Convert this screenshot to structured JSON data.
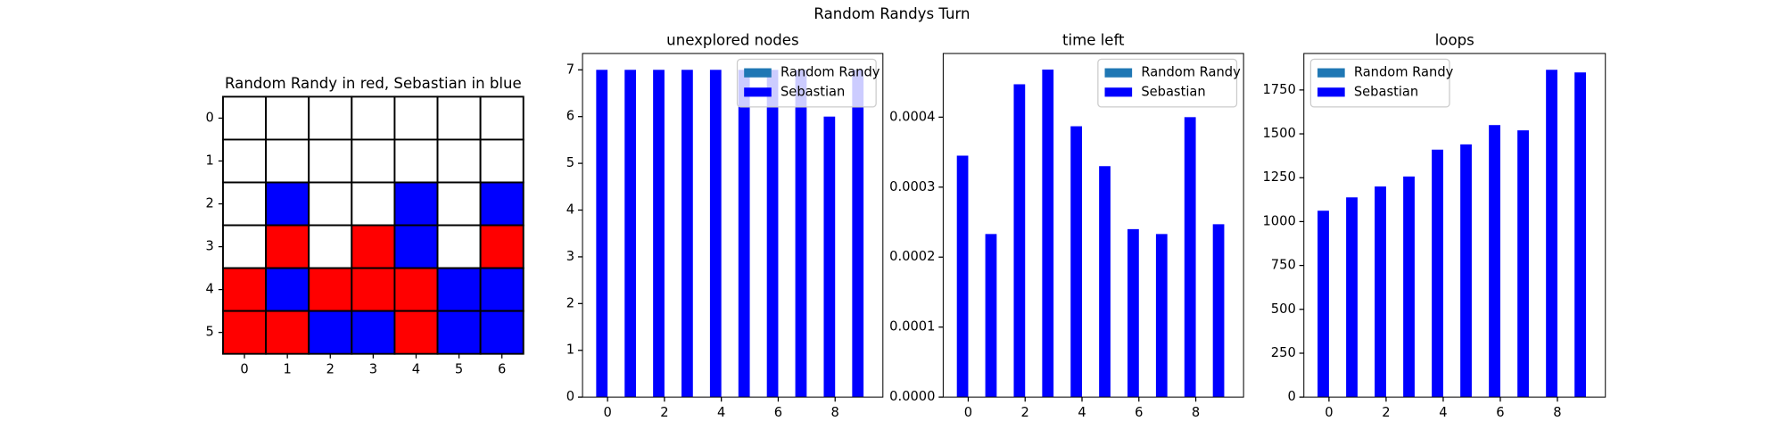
{
  "title": "Random Randys Turn",
  "chart_data": [
    {
      "type": "grid",
      "title": "Random Randy in red, Sebastian in blue",
      "colors": [
        "#ffffff",
        "#ff0000",
        "#0000ff"
      ],
      "values": [
        [
          0,
          0,
          0,
          0,
          0,
          0,
          0
        ],
        [
          0,
          0,
          0,
          0,
          0,
          0,
          0
        ],
        [
          0,
          2,
          0,
          0,
          2,
          0,
          2
        ],
        [
          0,
          1,
          0,
          1,
          2,
          0,
          1
        ],
        [
          1,
          2,
          1,
          1,
          1,
          2,
          2
        ],
        [
          1,
          1,
          2,
          2,
          1,
          2,
          2
        ]
      ],
      "xticks": [
        0,
        1,
        2,
        3,
        4,
        5,
        6
      ],
      "yticks": [
        0,
        1,
        2,
        3,
        4,
        5
      ]
    },
    {
      "type": "bar",
      "title": "unexplored nodes",
      "x": [
        0,
        1,
        2,
        3,
        4,
        5,
        6,
        7,
        8,
        9
      ],
      "series": [
        {
          "name": "Random Randy",
          "color": "#1f77b4",
          "values": [
            0,
            0,
            0,
            0,
            0,
            0,
            0,
            0,
            0,
            0
          ]
        },
        {
          "name": "Sebastian",
          "color": "#0000ff",
          "values": [
            7,
            7,
            7,
            7,
            7,
            7,
            7,
            7,
            6,
            7
          ]
        }
      ],
      "xlim": [
        -0.88,
        9.68
      ],
      "xticks": [
        0,
        2,
        4,
        6,
        8
      ],
      "ylim": [
        0,
        7.35
      ],
      "yticks": [
        0,
        1,
        2,
        3,
        4,
        5,
        6,
        7
      ],
      "legend": "upper right"
    },
    {
      "type": "bar",
      "title": "time left",
      "x": [
        0,
        1,
        2,
        3,
        4,
        5,
        6,
        7,
        8,
        9
      ],
      "series": [
        {
          "name": "Random Randy",
          "color": "#1f77b4",
          "values": [
            0,
            0,
            0,
            0,
            0,
            0,
            0,
            0,
            0,
            0
          ]
        },
        {
          "name": "Sebastian",
          "color": "#0000ff",
          "values": [
            0.000345,
            0.000233,
            0.000447,
            0.000468,
            0.000387,
            0.00033,
            0.00024,
            0.000233,
            0.0004,
            0.000247
          ]
        }
      ],
      "xlim": [
        -0.88,
        9.68
      ],
      "xticks": [
        0,
        2,
        4,
        6,
        8
      ],
      "ylim": [
        0,
        0.000491
      ],
      "yticks": [
        {
          "value": 0,
          "label": "0.0000"
        },
        {
          "value": 0.0001,
          "label": "0.0001"
        },
        {
          "value": 0.0002,
          "label": "0.0002"
        },
        {
          "value": 0.0003,
          "label": "0.0003"
        },
        {
          "value": 0.0004,
          "label": "0.0004"
        }
      ],
      "legend": "upper right"
    },
    {
      "type": "bar",
      "title": "loops",
      "x": [
        0,
        1,
        2,
        3,
        4,
        5,
        6,
        7,
        8,
        9
      ],
      "series": [
        {
          "name": "Random Randy",
          "color": "#1f77b4",
          "values": [
            0,
            0,
            0,
            0,
            0,
            0,
            0,
            0,
            0,
            0
          ]
        },
        {
          "name": "Sebastian",
          "color": "#0000ff",
          "values": [
            1062,
            1138,
            1200,
            1257,
            1410,
            1440,
            1550,
            1520,
            1865,
            1850
          ]
        }
      ],
      "xlim": [
        -0.88,
        9.68
      ],
      "xticks": [
        0,
        2,
        4,
        6,
        8
      ],
      "ylim": [
        0,
        1958
      ],
      "yticks": [
        0,
        250,
        500,
        750,
        1000,
        1250,
        1500,
        1750
      ],
      "legend": "upper left"
    }
  ]
}
